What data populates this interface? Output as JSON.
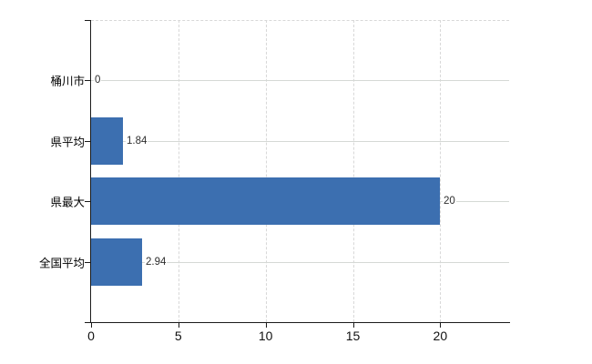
{
  "chart_data": {
    "type": "bar",
    "orientation": "horizontal",
    "title": "",
    "categories": [
      "桶川市",
      "県平均",
      "県最大",
      "全国平均"
    ],
    "values": [
      0,
      1.84,
      20,
      2.94
    ],
    "value_labels": [
      "0",
      "1.84",
      "20",
      "2.94"
    ],
    "x_ticks": [
      0,
      5,
      10,
      15,
      20
    ],
    "x_tick_labels": [
      "0",
      "5",
      "10",
      "15",
      "20"
    ],
    "xlim": [
      0,
      24
    ],
    "grid": true,
    "legend": false,
    "bar_color": "#3c6fb0",
    "axis_color": "#1a1a1a",
    "gridline_color": "#d8d8d8",
    "tick_label_color": "#111111",
    "category_label_color": "#000000",
    "value_label_color": "#2e2e2e",
    "background_color": "#ffffff"
  }
}
